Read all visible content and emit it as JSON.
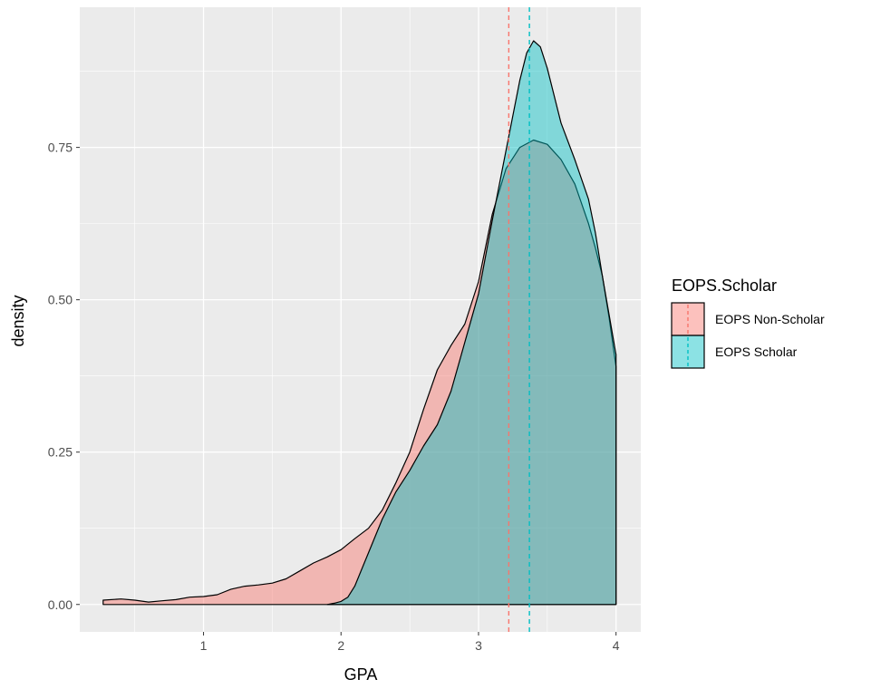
{
  "chart_data": {
    "type": "area",
    "xlabel": "GPA",
    "ylabel": "density",
    "xlim": [
      0.1,
      4.18
    ],
    "ylim": [
      -0.045,
      0.98
    ],
    "x_ticks": [
      1,
      2,
      3,
      4
    ],
    "x_tick_labels": [
      "1",
      "2",
      "3",
      "4"
    ],
    "y_ticks": [
      0,
      0.25,
      0.5,
      0.75
    ],
    "y_tick_labels": [
      "0.00",
      "0.25",
      "0.50",
      "0.75"
    ],
    "grid": true,
    "legend": {
      "title": "EOPS.Scholar",
      "position": "right"
    },
    "series": [
      {
        "name": "EOPS Non-Scholar",
        "fill": "#F8766D",
        "mean": 3.22,
        "points": [
          [
            0.27,
            0.007
          ],
          [
            0.4,
            0.009
          ],
          [
            0.5,
            0.007
          ],
          [
            0.6,
            0.004
          ],
          [
            0.7,
            0.006
          ],
          [
            0.8,
            0.008
          ],
          [
            0.9,
            0.012
          ],
          [
            1.0,
            0.013
          ],
          [
            1.1,
            0.016
          ],
          [
            1.2,
            0.025
          ],
          [
            1.3,
            0.03
          ],
          [
            1.4,
            0.032
          ],
          [
            1.5,
            0.035
          ],
          [
            1.6,
            0.042
          ],
          [
            1.7,
            0.055
          ],
          [
            1.8,
            0.068
          ],
          [
            1.9,
            0.078
          ],
          [
            2.0,
            0.09
          ],
          [
            2.1,
            0.108
          ],
          [
            2.2,
            0.125
          ],
          [
            2.3,
            0.155
          ],
          [
            2.4,
            0.2
          ],
          [
            2.5,
            0.25
          ],
          [
            2.6,
            0.32
          ],
          [
            2.7,
            0.385
          ],
          [
            2.8,
            0.425
          ],
          [
            2.9,
            0.46
          ],
          [
            3.0,
            0.53
          ],
          [
            3.1,
            0.64
          ],
          [
            3.2,
            0.715
          ],
          [
            3.3,
            0.75
          ],
          [
            3.4,
            0.762
          ],
          [
            3.5,
            0.755
          ],
          [
            3.6,
            0.73
          ],
          [
            3.7,
            0.69
          ],
          [
            3.8,
            0.625
          ],
          [
            3.85,
            0.585
          ],
          [
            3.9,
            0.54
          ],
          [
            3.95,
            0.47
          ],
          [
            4.0,
            0.39
          ]
        ]
      },
      {
        "name": "EOPS Scholar",
        "fill": "#00BFC4",
        "mean": 3.37,
        "points": [
          [
            1.9,
            0.0
          ],
          [
            1.95,
            0.002
          ],
          [
            2.0,
            0.005
          ],
          [
            2.05,
            0.012
          ],
          [
            2.1,
            0.03
          ],
          [
            2.2,
            0.085
          ],
          [
            2.3,
            0.14
          ],
          [
            2.4,
            0.185
          ],
          [
            2.5,
            0.22
          ],
          [
            2.6,
            0.26
          ],
          [
            2.7,
            0.295
          ],
          [
            2.8,
            0.35
          ],
          [
            2.9,
            0.43
          ],
          [
            3.0,
            0.51
          ],
          [
            3.1,
            0.63
          ],
          [
            3.2,
            0.745
          ],
          [
            3.3,
            0.86
          ],
          [
            3.35,
            0.905
          ],
          [
            3.4,
            0.925
          ],
          [
            3.45,
            0.915
          ],
          [
            3.5,
            0.88
          ],
          [
            3.6,
            0.79
          ],
          [
            3.7,
            0.73
          ],
          [
            3.8,
            0.665
          ],
          [
            3.85,
            0.61
          ],
          [
            3.9,
            0.54
          ],
          [
            3.95,
            0.475
          ],
          [
            4.0,
            0.41
          ]
        ]
      }
    ]
  }
}
